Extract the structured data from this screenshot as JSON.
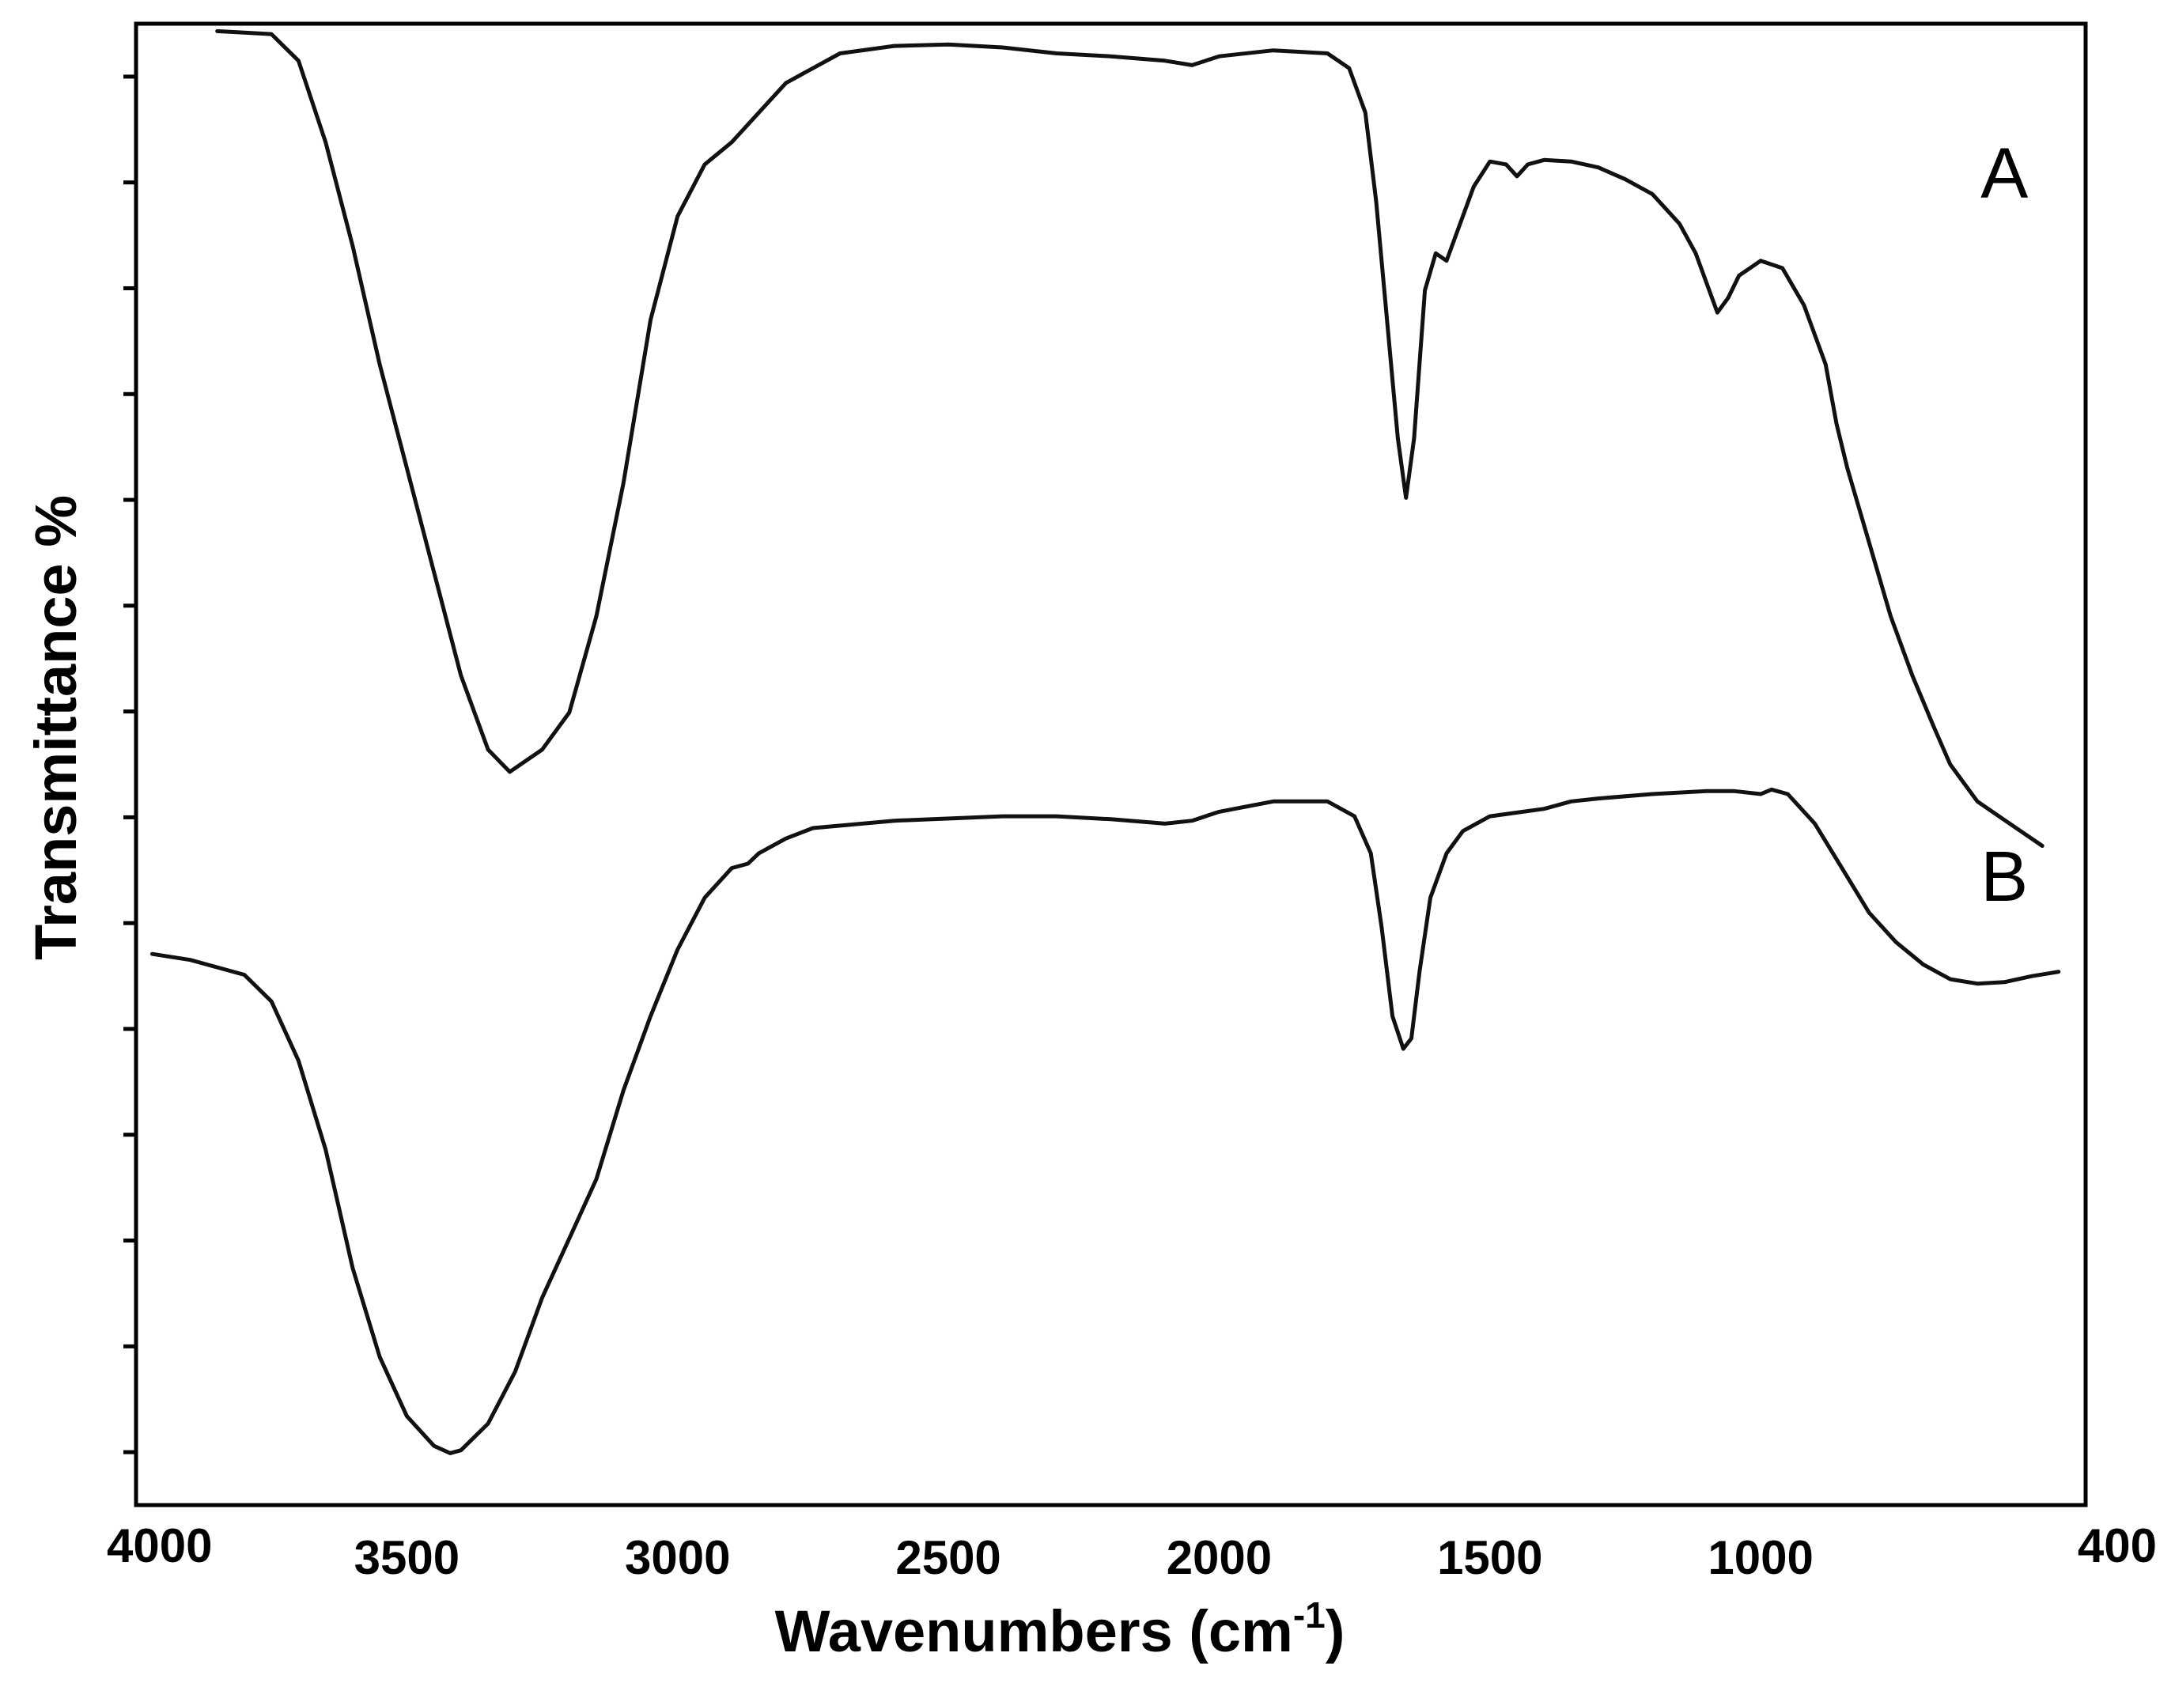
{
  "chart_data": {
    "type": "line",
    "title": "",
    "xlabel": "Wavenumbers (cm",
    "xlabel_superscript": "-1",
    "xlabel_close": ")",
    "ylabel": "Transmittance %",
    "xlim": [
      4000,
      400
    ],
    "ylim": [
      0,
      100
    ],
    "x_ticks": [
      4000,
      3500,
      3000,
      2500,
      2000,
      1500,
      1000,
      400
    ],
    "x_tick_labels": [
      "4000",
      "3500",
      "3000",
      "2500",
      "2000",
      "1500",
      "1000",
      "400"
    ],
    "y_tick_count": 14,
    "y_tick_labels_shown": false,
    "grid": false,
    "series": [
      {
        "name": "A",
        "color": "#111111",
        "points": [
          [
            3850,
            99.5
          ],
          [
            3750,
            99.3
          ],
          [
            3700,
            97.5
          ],
          [
            3650,
            92
          ],
          [
            3600,
            85
          ],
          [
            3550,
            77
          ],
          [
            3500,
            70
          ],
          [
            3450,
            63
          ],
          [
            3400,
            56
          ],
          [
            3350,
            51
          ],
          [
            3310,
            49.5
          ],
          [
            3250,
            51
          ],
          [
            3200,
            53.5
          ],
          [
            3150,
            60
          ],
          [
            3100,
            69
          ],
          [
            3050,
            80
          ],
          [
            3000,
            87
          ],
          [
            2950,
            90.5
          ],
          [
            2900,
            92
          ],
          [
            2850,
            94
          ],
          [
            2800,
            96
          ],
          [
            2700,
            98
          ],
          [
            2600,
            98.5
          ],
          [
            2500,
            98.6
          ],
          [
            2400,
            98.4
          ],
          [
            2300,
            98
          ],
          [
            2200,
            97.8
          ],
          [
            2100,
            97.5
          ],
          [
            2050,
            97.2
          ],
          [
            2000,
            97.8
          ],
          [
            1900,
            98.2
          ],
          [
            1800,
            98
          ],
          [
            1760,
            97
          ],
          [
            1730,
            94
          ],
          [
            1710,
            88
          ],
          [
            1690,
            80
          ],
          [
            1670,
            72
          ],
          [
            1655,
            68
          ],
          [
            1640,
            72
          ],
          [
            1620,
            82
          ],
          [
            1600,
            84.5
          ],
          [
            1580,
            84
          ],
          [
            1560,
            86
          ],
          [
            1530,
            89
          ],
          [
            1500,
            90.7
          ],
          [
            1470,
            90.5
          ],
          [
            1450,
            89.7
          ],
          [
            1430,
            90.5
          ],
          [
            1400,
            90.8
          ],
          [
            1350,
            90.7
          ],
          [
            1300,
            90.3
          ],
          [
            1250,
            89.5
          ],
          [
            1200,
            88.5
          ],
          [
            1150,
            86.5
          ],
          [
            1120,
            84.5
          ],
          [
            1100,
            82.5
          ],
          [
            1080,
            80.5
          ],
          [
            1060,
            81.5
          ],
          [
            1040,
            83
          ],
          [
            1000,
            84
          ],
          [
            960,
            83.5
          ],
          [
            920,
            81
          ],
          [
            880,
            77
          ],
          [
            860,
            73
          ],
          [
            840,
            70
          ],
          [
            800,
            65
          ],
          [
            760,
            60
          ],
          [
            720,
            56
          ],
          [
            680,
            52.5
          ],
          [
            650,
            50
          ],
          [
            620,
            48.5
          ],
          [
            600,
            47.5
          ],
          [
            560,
            46.5
          ],
          [
            520,
            45.5
          ],
          [
            480,
            44.5
          ]
        ]
      },
      {
        "name": "B",
        "color": "#111111",
        "points": [
          [
            3970,
            37.2
          ],
          [
            3900,
            36.8
          ],
          [
            3800,
            35.8
          ],
          [
            3750,
            34
          ],
          [
            3700,
            30
          ],
          [
            3650,
            24
          ],
          [
            3600,
            16
          ],
          [
            3550,
            10
          ],
          [
            3500,
            6
          ],
          [
            3450,
            4
          ],
          [
            3420,
            3.5
          ],
          [
            3400,
            3.7
          ],
          [
            3350,
            5.5
          ],
          [
            3300,
            9
          ],
          [
            3250,
            14
          ],
          [
            3200,
            18
          ],
          [
            3150,
            22
          ],
          [
            3100,
            28
          ],
          [
            3050,
            33
          ],
          [
            3000,
            37.5
          ],
          [
            2950,
            41
          ],
          [
            2900,
            43
          ],
          [
            2870,
            43.3
          ],
          [
            2850,
            44
          ],
          [
            2800,
            45
          ],
          [
            2750,
            45.7
          ],
          [
            2600,
            46.2
          ],
          [
            2400,
            46.5
          ],
          [
            2300,
            46.5
          ],
          [
            2200,
            46.3
          ],
          [
            2100,
            46
          ],
          [
            2050,
            46.2
          ],
          [
            2000,
            46.8
          ],
          [
            1900,
            47.5
          ],
          [
            1800,
            47.5
          ],
          [
            1750,
            46.5
          ],
          [
            1720,
            44
          ],
          [
            1700,
            39
          ],
          [
            1680,
            33
          ],
          [
            1660,
            30.8
          ],
          [
            1645,
            31.5
          ],
          [
            1630,
            36
          ],
          [
            1610,
            41
          ],
          [
            1580,
            44
          ],
          [
            1550,
            45.5
          ],
          [
            1500,
            46.5
          ],
          [
            1400,
            47
          ],
          [
            1350,
            47.5
          ],
          [
            1300,
            47.7
          ],
          [
            1200,
            48
          ],
          [
            1100,
            48.2
          ],
          [
            1050,
            48.2
          ],
          [
            1000,
            48
          ],
          [
            980,
            48.3
          ],
          [
            950,
            48
          ],
          [
            900,
            46
          ],
          [
            850,
            43
          ],
          [
            800,
            40
          ],
          [
            750,
            38
          ],
          [
            700,
            36.5
          ],
          [
            650,
            35.5
          ],
          [
            600,
            35.2
          ],
          [
            550,
            35.3
          ],
          [
            500,
            35.7
          ],
          [
            450,
            36
          ]
        ]
      }
    ],
    "annotations": [
      {
        "text": "A",
        "x": 550,
        "y": 90
      },
      {
        "text": "B",
        "x": 550,
        "y": 42.5
      }
    ]
  }
}
